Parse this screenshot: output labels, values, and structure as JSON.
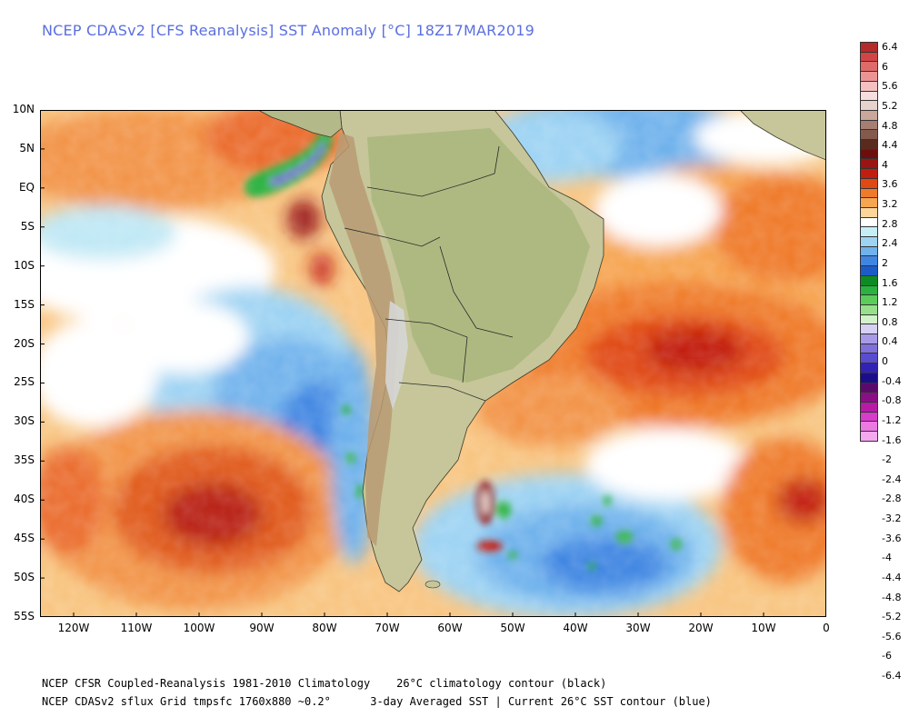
{
  "title": "NCEP CDASv2 [CFS Reanalysis] SST Anomaly [°C] 18Z17MAR2019",
  "lat_labels": [
    "10N",
    "5N",
    "EQ",
    "5S",
    "10S",
    "15S",
    "20S",
    "25S",
    "30S",
    "35S",
    "40S",
    "45S",
    "50S",
    "55S"
  ],
  "lon_labels": [
    "120W",
    "110W",
    "100W",
    "90W",
    "80W",
    "70W",
    "60W",
    "50W",
    "40W",
    "30W",
    "20W",
    "10W",
    "0"
  ],
  "colorbar": {
    "labels": [
      "6.4",
      "6",
      "5.6",
      "5.2",
      "4.8",
      "4.4",
      "4",
      "3.6",
      "3.2",
      "2.8",
      "2.4",
      "2",
      "1.6",
      "1.2",
      "0.8",
      "0.4",
      "0",
      "-0.4",
      "-0.8",
      "-1.2",
      "-1.6",
      "-2",
      "-2.4",
      "-2.8",
      "-3.2",
      "-3.6",
      "-4",
      "-4.4",
      "-4.8",
      "-5.2",
      "-5.6",
      "-6",
      "-6.4"
    ],
    "colors": [
      "#b52a2a",
      "#d34545",
      "#e06a6a",
      "#ec9494",
      "#f4c0c0",
      "#f6dede",
      "#e8d2cc",
      "#c9a79a",
      "#a77e72",
      "#845a4d",
      "#5a2a1f",
      "#6e0d0d",
      "#9a1414",
      "#c21e10",
      "#e04a12",
      "#ef7a2a",
      "#f6a551",
      "#fbd59a",
      "#ffffff",
      "#c6eef7",
      "#9dd3f3",
      "#6fb2ec",
      "#3f86e2",
      "#1d5cc8",
      "#0d8c25",
      "#29b240",
      "#5acc5a",
      "#96e08c",
      "#d2f2c9",
      "#d6d0f3",
      "#a89ae6",
      "#8070da",
      "#5a4ccf",
      "#3222b4",
      "#1b0d8a",
      "#5a0a6a",
      "#8a0f86",
      "#b81aa8",
      "#d83ccc",
      "#ec78e2",
      "#f4a8ee"
    ]
  },
  "footer": {
    "line1": "NCEP CFSR Coupled-Reanalysis 1981-2010 Climatology    26°C climatology contour (black)",
    "line2": "NCEP CDASv2 sflux Grid tmpsfc 1760x880 ~0.2°      3-day Averaged SST | Current 26°C SST contour (blue)"
  }
}
